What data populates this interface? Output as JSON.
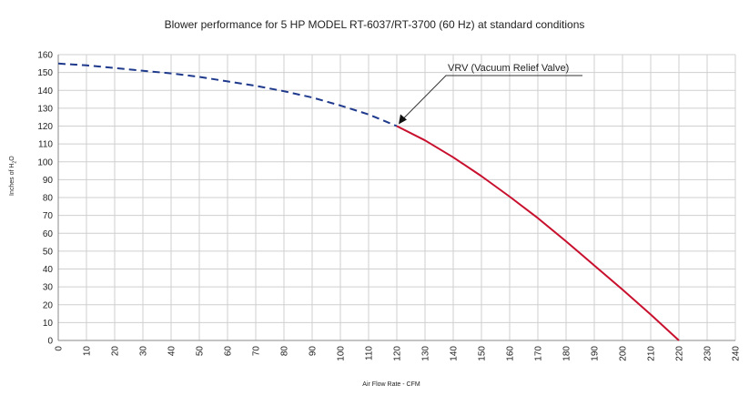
{
  "chart_data": {
    "type": "line",
    "title": "Blower performance for 5 HP MODEL RT-6037/RT-3700 (60 Hz) at standard conditions",
    "xlabel": "Air Flow Rate - CFM",
    "ylabel": {
      "prefix": "Inches of H",
      "sub": "2",
      "suffix": "O"
    },
    "xlim": [
      0,
      240
    ],
    "ylim": [
      0,
      160
    ],
    "x_ticks": [
      0,
      10,
      20,
      30,
      40,
      50,
      60,
      70,
      80,
      90,
      100,
      110,
      120,
      130,
      140,
      150,
      160,
      170,
      180,
      190,
      200,
      210,
      220,
      230,
      240
    ],
    "y_ticks": [
      0,
      10,
      20,
      30,
      40,
      50,
      60,
      70,
      80,
      90,
      100,
      110,
      120,
      130,
      140,
      150,
      160
    ],
    "grid": true,
    "series": [
      {
        "style": "dashed",
        "color": "#1f3a8c",
        "x": [
          0,
          10,
          20,
          30,
          40,
          50,
          60,
          70,
          80,
          90,
          100,
          110,
          120
        ],
        "y": [
          155,
          154,
          152.5,
          151,
          149.5,
          147.5,
          145,
          142.5,
          139.5,
          136,
          131.5,
          126.5,
          120
        ]
      },
      {
        "style": "solid",
        "color": "#c8102e",
        "x": [
          120,
          130,
          140,
          150,
          160,
          170,
          180,
          190,
          200,
          210,
          220
        ],
        "y": [
          120,
          112,
          102.5,
          92,
          80.5,
          68.5,
          55.5,
          42,
          28.5,
          14.5,
          0
        ]
      }
    ],
    "annotations": [
      {
        "text": "VRV (Vacuum Relief Valve)",
        "x": 120,
        "y": 120
      }
    ]
  }
}
